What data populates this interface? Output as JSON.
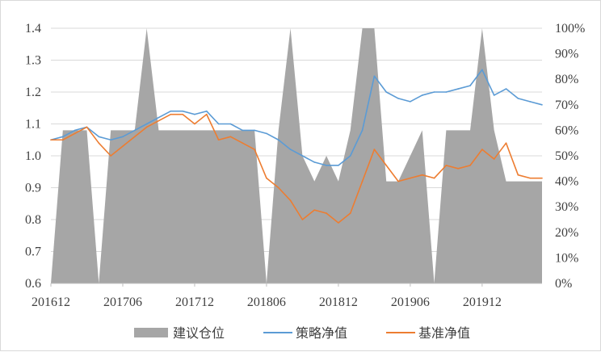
{
  "chart_data": {
    "type": "line",
    "title": "",
    "xlabel": "",
    "ylabel": "",
    "x_ticks": [
      "201612",
      "201706",
      "201712",
      "201806",
      "201812",
      "201906",
      "201912"
    ],
    "y_left_ticks": [
      "0.6",
      "0.7",
      "0.8",
      "0.9",
      "1.0",
      "1.1",
      "1.2",
      "1.3",
      "1.4"
    ],
    "y_right_ticks": [
      "0%",
      "10%",
      "20%",
      "30%",
      "40%",
      "50%",
      "60%",
      "70%",
      "80%",
      "90%",
      "100%"
    ],
    "ylim_left": [
      0.6,
      1.4
    ],
    "ylim_right": [
      0,
      100
    ],
    "xlim": [
      "2016-12",
      "2020-05"
    ],
    "legend_position": "bottom",
    "gridlines": true,
    "series": [
      {
        "name": "建议仓位",
        "kind": "area",
        "axis": "right",
        "color": "#a6a6a6",
        "points": [
          [
            "2016-12",
            0
          ],
          [
            "2017-01",
            60
          ],
          [
            "2017-02",
            60
          ],
          [
            "2017-03",
            60
          ],
          [
            "2017-04",
            0
          ],
          [
            "2017-05",
            60
          ],
          [
            "2017-06",
            60
          ],
          [
            "2017-07",
            60
          ],
          [
            "2017-08",
            100
          ],
          [
            "2017-09",
            60
          ],
          [
            "2017-10",
            60
          ],
          [
            "2017-11",
            60
          ],
          [
            "2017-12",
            60
          ],
          [
            "2018-01",
            60
          ],
          [
            "2018-02",
            60
          ],
          [
            "2018-03",
            60
          ],
          [
            "2018-04",
            60
          ],
          [
            "2018-05",
            60
          ],
          [
            "2018-06",
            0
          ],
          [
            "2018-07",
            60
          ],
          [
            "2018-08",
            100
          ],
          [
            "2018-09",
            50
          ],
          [
            "2018-10",
            40
          ],
          [
            "2018-11",
            50
          ],
          [
            "2018-12",
            40
          ],
          [
            "2019-01",
            60
          ],
          [
            "2019-02",
            100
          ],
          [
            "2019-03",
            100
          ],
          [
            "2019-04",
            40
          ],
          [
            "2019-05",
            40
          ],
          [
            "2019-06",
            50
          ],
          [
            "2019-07",
            60
          ],
          [
            "2019-08",
            0
          ],
          [
            "2019-09",
            60
          ],
          [
            "2019-10",
            60
          ],
          [
            "2019-11",
            60
          ],
          [
            "2019-12",
            100
          ],
          [
            "2020-01",
            60
          ],
          [
            "2020-02",
            40
          ],
          [
            "2020-03",
            40
          ],
          [
            "2020-04",
            40
          ],
          [
            "2020-05",
            40
          ]
        ]
      },
      {
        "name": "策略净值",
        "kind": "line",
        "axis": "left",
        "color": "#5b9bd5",
        "points": [
          [
            "2016-12",
            1.05
          ],
          [
            "2017-01",
            1.06
          ],
          [
            "2017-02",
            1.08
          ],
          [
            "2017-03",
            1.09
          ],
          [
            "2017-04",
            1.06
          ],
          [
            "2017-05",
            1.05
          ],
          [
            "2017-06",
            1.06
          ],
          [
            "2017-07",
            1.08
          ],
          [
            "2017-08",
            1.1
          ],
          [
            "2017-09",
            1.12
          ],
          [
            "2017-10",
            1.14
          ],
          [
            "2017-11",
            1.14
          ],
          [
            "2017-12",
            1.13
          ],
          [
            "2018-01",
            1.14
          ],
          [
            "2018-02",
            1.1
          ],
          [
            "2018-03",
            1.1
          ],
          [
            "2018-04",
            1.08
          ],
          [
            "2018-05",
            1.08
          ],
          [
            "2018-06",
            1.07
          ],
          [
            "2018-07",
            1.05
          ],
          [
            "2018-08",
            1.02
          ],
          [
            "2018-09",
            1.0
          ],
          [
            "2018-10",
            0.98
          ],
          [
            "2018-11",
            0.97
          ],
          [
            "2018-12",
            0.97
          ],
          [
            "2019-01",
            1.0
          ],
          [
            "2019-02",
            1.08
          ],
          [
            "2019-03",
            1.25
          ],
          [
            "2019-04",
            1.2
          ],
          [
            "2019-05",
            1.18
          ],
          [
            "2019-06",
            1.17
          ],
          [
            "2019-07",
            1.19
          ],
          [
            "2019-08",
            1.2
          ],
          [
            "2019-09",
            1.2
          ],
          [
            "2019-10",
            1.21
          ],
          [
            "2019-11",
            1.22
          ],
          [
            "2019-12",
            1.27
          ],
          [
            "2020-01",
            1.19
          ],
          [
            "2020-02",
            1.21
          ],
          [
            "2020-03",
            1.18
          ],
          [
            "2020-04",
            1.17
          ],
          [
            "2020-05",
            1.16
          ]
        ]
      },
      {
        "name": "基准净值",
        "kind": "line",
        "axis": "left",
        "color": "#ed7d31",
        "points": [
          [
            "2016-12",
            1.05
          ],
          [
            "2017-01",
            1.05
          ],
          [
            "2017-02",
            1.07
          ],
          [
            "2017-03",
            1.09
          ],
          [
            "2017-04",
            1.04
          ],
          [
            "2017-05",
            1.0
          ],
          [
            "2017-06",
            1.03
          ],
          [
            "2017-07",
            1.06
          ],
          [
            "2017-08",
            1.09
          ],
          [
            "2017-09",
            1.11
          ],
          [
            "2017-10",
            1.13
          ],
          [
            "2017-11",
            1.13
          ],
          [
            "2017-12",
            1.1
          ],
          [
            "2018-01",
            1.13
          ],
          [
            "2018-02",
            1.05
          ],
          [
            "2018-03",
            1.06
          ],
          [
            "2018-04",
            1.04
          ],
          [
            "2018-05",
            1.02
          ],
          [
            "2018-06",
            0.93
          ],
          [
            "2018-07",
            0.9
          ],
          [
            "2018-08",
            0.86
          ],
          [
            "2018-09",
            0.8
          ],
          [
            "2018-10",
            0.83
          ],
          [
            "2018-11",
            0.82
          ],
          [
            "2018-12",
            0.79
          ],
          [
            "2019-01",
            0.82
          ],
          [
            "2019-02",
            0.92
          ],
          [
            "2019-03",
            1.02
          ],
          [
            "2019-04",
            0.97
          ],
          [
            "2019-05",
            0.92
          ],
          [
            "2019-06",
            0.93
          ],
          [
            "2019-07",
            0.94
          ],
          [
            "2019-08",
            0.93
          ],
          [
            "2019-09",
            0.97
          ],
          [
            "2019-10",
            0.96
          ],
          [
            "2019-11",
            0.97
          ],
          [
            "2019-12",
            1.02
          ],
          [
            "2020-01",
            0.99
          ],
          [
            "2020-02",
            1.04
          ],
          [
            "2020-03",
            0.94
          ],
          [
            "2020-04",
            0.93
          ],
          [
            "2020-05",
            0.93
          ]
        ]
      }
    ]
  }
}
